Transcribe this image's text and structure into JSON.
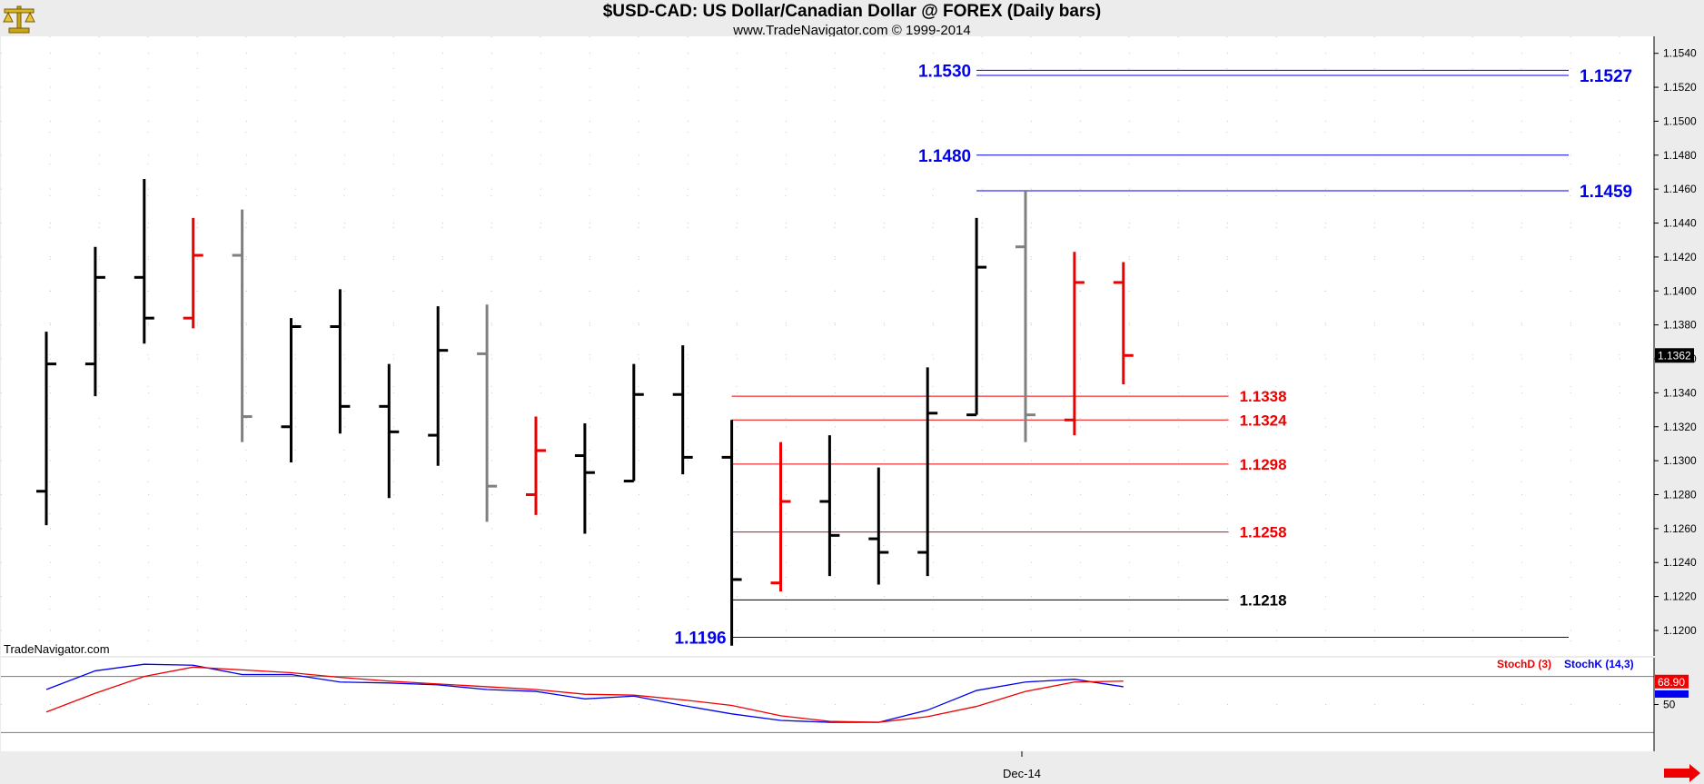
{
  "header": {
    "title": "$USD-CAD:  US Dollar/Canadian Dollar @ FOREX  (Daily bars)",
    "subtitle": "www.TradeNavigator.com © 1999-2014"
  },
  "watermark": "TradeNavigator.com",
  "x_axis": {
    "month_label": "Dec-14"
  },
  "colors": {
    "blue": "#0000ee",
    "red": "#ee0000",
    "black": "#000000",
    "gray": "#808080"
  },
  "icons": {
    "logo": "scales-logo-icon",
    "scroll": "scroll-right-arrow-icon"
  },
  "chart_data": [
    {
      "type": "ohlc",
      "title": "$USD-CAD:  US Dollar/Canadian Dollar @ FOREX  (Daily bars)",
      "ylim": [
        1.1185,
        1.155
      ],
      "y_ticks": [
        "1.1540",
        "1.1520",
        "1.1500",
        "1.1480",
        "1.1460",
        "1.1440",
        "1.1420",
        "1.1400",
        "1.1380",
        "1.1360",
        "1.1340",
        "1.1320",
        "1.1300",
        "1.1280",
        "1.1260",
        "1.1240",
        "1.1220",
        "1.1200"
      ],
      "last_price": "1.1362",
      "grid": true,
      "bars": [
        {
          "o": 1.1282,
          "h": 1.1376,
          "l": 1.1262,
          "c": 1.1357,
          "color": "black"
        },
        {
          "o": 1.1357,
          "h": 1.1426,
          "l": 1.1338,
          "c": 1.1408,
          "color": "black"
        },
        {
          "o": 1.1408,
          "h": 1.1466,
          "l": 1.1369,
          "c": 1.1384,
          "color": "black"
        },
        {
          "o": 1.1384,
          "h": 1.1443,
          "l": 1.1378,
          "c": 1.1421,
          "color": "red"
        },
        {
          "o": 1.1421,
          "h": 1.1448,
          "l": 1.1311,
          "c": 1.1326,
          "color": "gray"
        },
        {
          "o": 1.132,
          "h": 1.1384,
          "l": 1.1299,
          "c": 1.1379,
          "color": "black"
        },
        {
          "o": 1.1379,
          "h": 1.1401,
          "l": 1.1316,
          "c": 1.1332,
          "color": "black"
        },
        {
          "o": 1.1332,
          "h": 1.1357,
          "l": 1.1278,
          "c": 1.1317,
          "color": "black"
        },
        {
          "o": 1.1315,
          "h": 1.1391,
          "l": 1.1297,
          "c": 1.1365,
          "color": "black"
        },
        {
          "o": 1.1363,
          "h": 1.1392,
          "l": 1.1264,
          "c": 1.1285,
          "color": "gray"
        },
        {
          "o": 1.128,
          "h": 1.1326,
          "l": 1.1268,
          "c": 1.1306,
          "color": "red"
        },
        {
          "o": 1.1303,
          "h": 1.1322,
          "l": 1.1257,
          "c": 1.1293,
          "color": "black"
        },
        {
          "o": 1.1288,
          "h": 1.1357,
          "l": 1.1288,
          "c": 1.1339,
          "color": "black"
        },
        {
          "o": 1.1339,
          "h": 1.1368,
          "l": 1.1292,
          "c": 1.1302,
          "color": "black"
        },
        {
          "o": 1.1302,
          "h": 1.1324,
          "l": 1.1191,
          "c": 1.123,
          "color": "black"
        },
        {
          "o": 1.1228,
          "h": 1.1311,
          "l": 1.1223,
          "c": 1.1276,
          "color": "red"
        },
        {
          "o": 1.1276,
          "h": 1.1315,
          "l": 1.1232,
          "c": 1.1256,
          "color": "black"
        },
        {
          "o": 1.1254,
          "h": 1.1296,
          "l": 1.1227,
          "c": 1.1246,
          "color": "black"
        },
        {
          "o": 1.1246,
          "h": 1.1355,
          "l": 1.1232,
          "c": 1.1328,
          "color": "black"
        },
        {
          "o": 1.1327,
          "h": 1.1443,
          "l": 1.1327,
          "c": 1.1414,
          "color": "black"
        },
        {
          "o": 1.1426,
          "h": 1.1459,
          "l": 1.1311,
          "c": 1.1327,
          "color": "gray"
        },
        {
          "o": 1.1324,
          "h": 1.1423,
          "l": 1.1315,
          "c": 1.1405,
          "color": "red"
        },
        {
          "o": 1.1405,
          "h": 1.1417,
          "l": 1.1345,
          "c": 1.1362,
          "color": "red"
        }
      ],
      "levels": [
        {
          "value": 1.153,
          "label": "1.1530",
          "side": "left",
          "color": "blue",
          "from": 19,
          "to": "right"
        },
        {
          "value": 1.1527,
          "label": "1.1527",
          "side": "right",
          "color": "blue",
          "from": 19,
          "to": "right"
        },
        {
          "value": 1.148,
          "label": "1.1480",
          "side": "left",
          "color": "blue",
          "from": 19,
          "to": "right"
        },
        {
          "value": 1.1459,
          "label": "1.1459",
          "side": "right",
          "color": "blue",
          "from": 19,
          "to": "right"
        },
        {
          "value": 1.1338,
          "label": "1.1338",
          "side": "right",
          "color": "red",
          "from": 14,
          "to": 24
        },
        {
          "value": 1.1324,
          "label": "1.1324",
          "side": "right",
          "color": "red",
          "from": 14,
          "to": 24
        },
        {
          "value": 1.1298,
          "label": "1.1298",
          "side": "right",
          "color": "red",
          "from": 14,
          "to": 24
        },
        {
          "value": 1.1258,
          "label": "1.1258",
          "side": "right",
          "color": "red",
          "from": 14,
          "to": 24
        },
        {
          "value": 1.1218,
          "label": "1.1218",
          "side": "right",
          "color": "black",
          "from": 14,
          "to": 24
        },
        {
          "value": 1.1196,
          "label": "1.1196",
          "side": "left",
          "color": "blue",
          "from": 14,
          "to": "right"
        }
      ]
    },
    {
      "type": "line",
      "legend": [
        {
          "name": "StochD (3)",
          "color": "red"
        },
        {
          "name": "StochK (14,3)",
          "color": "blue"
        }
      ],
      "ylim": [
        0,
        100
      ],
      "y_ticks": [
        "50"
      ],
      "last_value_labels": [
        "68.90"
      ],
      "series": [
        {
          "name": "StochK (14,3)",
          "color": "blue",
          "values": [
            66,
            86,
            93,
            92,
            82,
            82,
            74,
            73,
            71,
            66,
            64,
            56,
            59,
            49,
            40,
            33,
            31,
            31,
            44,
            65,
            74,
            77,
            69
          ]
        },
        {
          "name": "StochD (3)",
          "color": "red",
          "values": [
            42,
            62,
            80,
            90,
            87,
            84,
            79,
            75,
            72,
            69,
            66,
            61,
            60,
            55,
            49,
            38,
            32,
            31,
            37,
            48,
            64,
            74,
            75
          ]
        }
      ]
    }
  ]
}
